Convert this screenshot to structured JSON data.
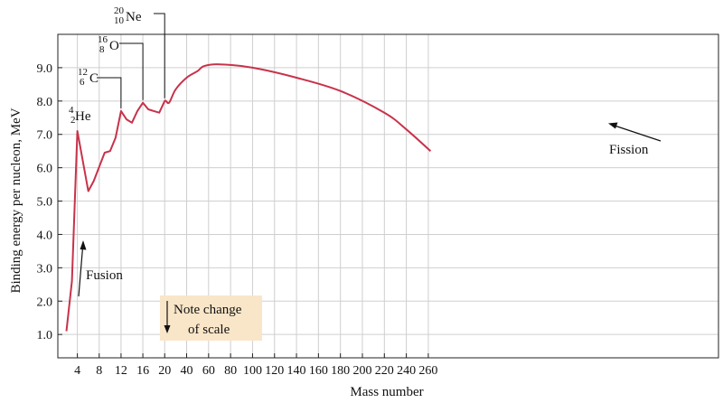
{
  "chart_data": {
    "type": "line",
    "xlabel": "Mass number",
    "ylabel": "Binding energy per nucleon, MeV",
    "ylim": [
      0.3,
      10.0
    ],
    "x_ticks": [
      "4",
      "8",
      "12",
      "16",
      "20",
      "40",
      "60",
      "80",
      "100",
      "120",
      "140",
      "160",
      "180",
      "200",
      "220",
      "240",
      "260"
    ],
    "y_ticks": [
      "1.0",
      "2.0",
      "3.0",
      "4.0",
      "5.0",
      "6.0",
      "7.0",
      "8.0",
      "9.0"
    ],
    "grid": true,
    "scale_note": "x axis is linear from 2 to 20, then compressed linear from 20 to 265",
    "series": [
      {
        "color": "#c8324a",
        "points": [
          [
            2,
            1.1
          ],
          [
            3,
            2.6
          ],
          [
            4,
            7.1
          ],
          [
            6,
            5.3
          ],
          [
            7,
            5.6
          ],
          [
            9,
            6.45
          ],
          [
            10,
            6.5
          ],
          [
            11,
            6.9
          ],
          [
            12,
            7.7
          ],
          [
            13,
            7.45
          ],
          [
            14,
            7.35
          ],
          [
            15,
            7.7
          ],
          [
            16,
            7.95
          ],
          [
            17,
            7.75
          ],
          [
            18,
            7.7
          ],
          [
            19,
            7.65
          ],
          [
            20,
            8.0
          ],
          [
            24,
            7.95
          ],
          [
            30,
            8.35
          ],
          [
            40,
            8.7
          ],
          [
            50,
            8.9
          ],
          [
            56,
            9.05
          ],
          [
            70,
            9.1
          ],
          [
            100,
            9.0
          ],
          [
            140,
            8.7
          ],
          [
            180,
            8.3
          ],
          [
            220,
            7.65
          ],
          [
            240,
            7.15
          ],
          [
            262,
            6.5
          ]
        ]
      }
    ],
    "isotopes": [
      {
        "mass": "4",
        "atomic": "2",
        "symbol": "He",
        "at_x": 4,
        "at_y": 7.1
      },
      {
        "mass": "12",
        "atomic": "6",
        "symbol": "C",
        "at_x": 12,
        "at_y": 7.7
      },
      {
        "mass": "16",
        "atomic": "8",
        "symbol": "O",
        "at_x": 16,
        "at_y": 7.95
      },
      {
        "mass": "20",
        "atomic": "10",
        "symbol": "Ne",
        "at_x": 20,
        "at_y": 8.0
      }
    ],
    "annotations": {
      "fusion": "Fusion",
      "fission": "Fission",
      "note_line1": "Note change",
      "note_line2": "of scale"
    }
  },
  "colors": {
    "curve": "#c8324a",
    "grid": "#cfcfcf",
    "axis": "#222222",
    "note_bg": "#f9e6c8"
  }
}
